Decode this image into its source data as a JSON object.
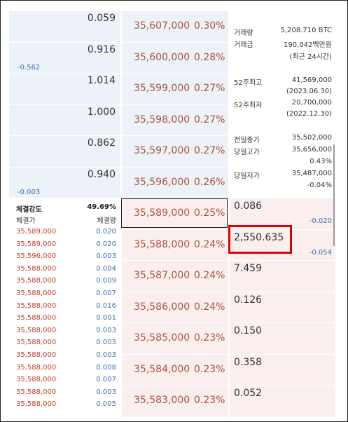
{
  "order_book": {
    "asks": [
      {
        "quantity": "0.059",
        "price": "35,607,000",
        "rate": "0.30%"
      },
      {
        "quantity": "0.916",
        "change": "-0.562",
        "price": "35,600,000",
        "rate": "0.28%"
      },
      {
        "quantity": "1.014",
        "price": "35,599,000",
        "rate": "0.27%"
      },
      {
        "quantity": "1.000",
        "price": "35,598,000",
        "rate": "0.27%"
      },
      {
        "quantity": "0.862",
        "price": "35,597,000",
        "rate": "0.27%"
      },
      {
        "quantity": "0.940",
        "change": "-0.003",
        "price": "35,596,000",
        "rate": "0.26%"
      }
    ],
    "bids": [
      {
        "price": "35,589,000",
        "rate": "0.25%",
        "quantity": "0.086",
        "change": "-0.020"
      },
      {
        "price": "35,588,000",
        "rate": "0.24%",
        "quantity": "2,550.635",
        "change": "-0.054"
      },
      {
        "price": "35,587,000",
        "rate": "0.24%",
        "quantity": "7.459"
      },
      {
        "price": "35,586,000",
        "rate": "0.24%",
        "quantity": "0.126"
      },
      {
        "price": "35,585,000",
        "rate": "0.23%",
        "quantity": "0.150"
      },
      {
        "price": "35,584,000",
        "rate": "0.23%",
        "quantity": "0.358"
      },
      {
        "price": "35,583,000",
        "rate": "0.23%",
        "quantity": "0.052"
      }
    ]
  },
  "market_info": {
    "volume": {
      "label": "거래량",
      "value": "5,208.710 BTC"
    },
    "amount": {
      "label": "거래금",
      "value": "190,042백만원",
      "sub": "(최근 24시간)"
    },
    "high_52w": {
      "label": "52주최고",
      "value": "41,569,000",
      "sub": "(2023.06.30)"
    },
    "low_52w": {
      "label": "52주최저",
      "value": "20,700,000",
      "sub": "(2022.12.30)"
    },
    "prev_close": {
      "label": "전일종가",
      "value": "35,502,000"
    },
    "day_high": {
      "label": "당일고가",
      "value": "35,656,000",
      "sub": "0.43%"
    },
    "day_low": {
      "label": "당일저가",
      "value": "35,487,000",
      "sub": "-0.04%"
    }
  },
  "trades": {
    "strength_label": "체결강도",
    "strength": "49.69%",
    "price_header": "체결가",
    "volume_header": "체결량",
    "rows": [
      [
        "35,589,000",
        "0.020"
      ],
      [
        "35,589,000",
        "0.020"
      ],
      [
        "35,596,000",
        "0.003"
      ],
      [
        "35,588,000",
        "0.004"
      ],
      [
        "35,588,000",
        "0.009"
      ],
      [
        "35,588,000",
        "0.007"
      ],
      [
        "35,588,000",
        "0.016"
      ],
      [
        "35,588,000",
        "0.001"
      ],
      [
        "35,588,000",
        "0.003"
      ],
      [
        "35,588,000",
        "0.003"
      ],
      [
        "35,588,000",
        "0.003"
      ],
      [
        "35,588,000",
        "0.008"
      ],
      [
        "35,588,000",
        "0.007"
      ],
      [
        "35,588,000",
        "0.003"
      ],
      [
        "35,588,000",
        "0.005"
      ]
    ]
  }
}
